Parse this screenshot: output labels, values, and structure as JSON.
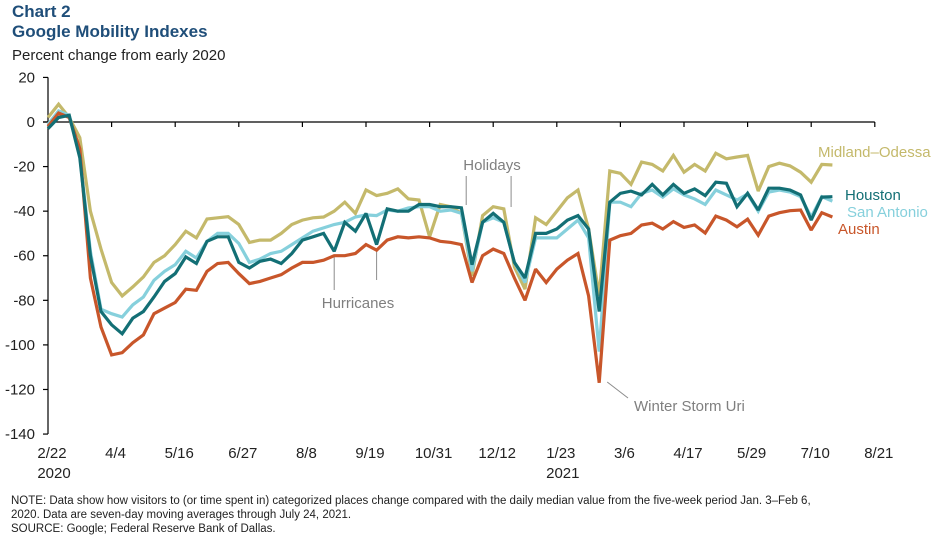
{
  "header": {
    "chart_number": "Chart 2",
    "title": "Google Mobility Indexes",
    "subtitle": "Percent change from early 2020"
  },
  "footnotes": {
    "note_line1": "NOTE: Data show how visitors to (or time spent in) categorized places change compared with the daily median value from the five-week  period Jan. 3–Feb 6,",
    "note_line2": "2020. Data are seven-day moving averages through July 24, 2021.",
    "source": "SOURCE: Google; Federal Reserve Bank of Dallas."
  },
  "chart_data": {
    "type": "line",
    "title": "Google Mobility Indexes",
    "ylabel": "Percent change from early 2020",
    "xlabel": "",
    "ylim": [
      -140,
      20
    ],
    "yticks": [
      20,
      0,
      -20,
      -40,
      -60,
      -80,
      -100,
      -120,
      -140
    ],
    "x_unit": "weeks since 2/22/2020",
    "xlim": [
      0,
      78
    ],
    "xticks": [
      {
        "week": 0,
        "label": "2/22",
        "year": "2020"
      },
      {
        "week": 6,
        "label": "4/4",
        "year": ""
      },
      {
        "week": 12,
        "label": "5/16",
        "year": ""
      },
      {
        "week": 18,
        "label": "6/27",
        "year": ""
      },
      {
        "week": 24,
        "label": "8/8",
        "year": ""
      },
      {
        "week": 30,
        "label": "9/19",
        "year": ""
      },
      {
        "week": 36,
        "label": "10/31",
        "year": ""
      },
      {
        "week": 42,
        "label": "12/12",
        "year": ""
      },
      {
        "week": 48,
        "label": "1/23",
        "year": "2021"
      },
      {
        "week": 54,
        "label": "3/6",
        "year": ""
      },
      {
        "week": 60,
        "label": "4/17",
        "year": ""
      },
      {
        "week": 66,
        "label": "5/29",
        "year": ""
      },
      {
        "week": 72,
        "label": "7/10",
        "year": ""
      },
      {
        "week": 78,
        "label": "8/21",
        "year": ""
      }
    ],
    "grid": false,
    "legend_placement": "right (labels at line ends)",
    "series": [
      {
        "name": "Midland–Odessa",
        "color": "#c4b96b",
        "values": [
          2,
          8,
          2,
          -7,
          -40,
          -57,
          -72,
          -78,
          -74,
          -69.5,
          -63,
          -60,
          -55,
          -49,
          -52,
          -43.5,
          -43,
          -42.5,
          -46,
          -54,
          -53,
          -53,
          -50,
          -46,
          -44,
          -43,
          -42.6,
          -40,
          -36,
          -41,
          -30.5,
          -33,
          -32,
          -30,
          -34.5,
          -35,
          -51.5,
          -37,
          -38,
          -41,
          -69,
          -42,
          -38,
          -39,
          -65,
          -75,
          -43,
          -46,
          -40,
          -34,
          -30.5,
          -48,
          -78,
          -22,
          -23,
          -28,
          -18,
          -19,
          -22,
          -15,
          -22.5,
          -19,
          -22,
          -14,
          -16.5,
          -15.7,
          -15,
          -31,
          -20,
          -18.5,
          -19.7,
          -22.5,
          -27,
          -19,
          -19.3
        ]
      },
      {
        "name": "Houston",
        "color": "#136f75",
        "values": [
          -3,
          2,
          3,
          -16,
          -60,
          -85,
          -91,
          -95,
          -88,
          -85,
          -78.5,
          -71.5,
          -68,
          -60.5,
          -63.5,
          -53.5,
          -51.5,
          -51.5,
          -63,
          -65.5,
          -62.5,
          -61.5,
          -63.5,
          -59,
          -53,
          -51.5,
          -50,
          -58,
          -45,
          -49,
          -41,
          -55,
          -39,
          -40,
          -40,
          -37,
          -37,
          -38,
          -38,
          -38.5,
          -64,
          -45,
          -41,
          -45,
          -63,
          -70,
          -50,
          -50,
          -48,
          -44,
          -42,
          -48,
          -85,
          -36,
          -32,
          -31,
          -32.7,
          -28,
          -32.7,
          -28,
          -32,
          -30,
          -33,
          -27,
          -27.5,
          -38,
          -32,
          -39.5,
          -29.7,
          -29.7,
          -30.5,
          -32.7,
          -44,
          -33.7,
          -33.5
        ]
      },
      {
        "name": "San Antonio",
        "color": "#86d0dc",
        "values": [
          -1,
          5,
          3,
          -15,
          -58,
          -84,
          -86,
          -87.5,
          -82,
          -78.5,
          -71,
          -67,
          -64,
          -58,
          -61,
          -53.5,
          -50,
          -50,
          -54.5,
          -63,
          -61.5,
          -59,
          -58,
          -55,
          -52,
          -49,
          -47.5,
          -46,
          -45,
          -42.6,
          -41.7,
          -42,
          -39.5,
          -40,
          -38.6,
          -38,
          -38,
          -40,
          -39.5,
          -41,
          -67,
          -45,
          -43,
          -45,
          -63,
          -72,
          -52,
          -52,
          -52,
          -48,
          -44,
          -52,
          -103,
          -36,
          -36,
          -38,
          -32,
          -30.5,
          -33.7,
          -30,
          -32.7,
          -34.5,
          -37,
          -30.5,
          -32.7,
          -35,
          -32.3,
          -40,
          -31.4,
          -30.5,
          -31.4,
          -33.5,
          -42.6,
          -33.5,
          -35.5
        ]
      },
      {
        "name": "Austin",
        "color": "#c8562a",
        "values": [
          -2,
          4,
          2,
          -12,
          -70,
          -92,
          -104.5,
          -103.5,
          -99,
          -95.5,
          -86,
          -83.5,
          -81,
          -75,
          -75.5,
          -67,
          -63.5,
          -63,
          -68,
          -72.5,
          -71.5,
          -70,
          -68.5,
          -65.5,
          -63,
          -63,
          -62,
          -60,
          -60,
          -59,
          -55,
          -57.5,
          -53,
          -51.5,
          -52,
          -51.5,
          -52,
          -53.5,
          -54,
          -55,
          -72,
          -60,
          -57,
          -59,
          -70,
          -80,
          -66,
          -72,
          -66,
          -62,
          -59,
          -78,
          -117,
          -53,
          -51,
          -50,
          -46.2,
          -45.4,
          -48,
          -44.7,
          -47.3,
          -46.2,
          -49.8,
          -42.2,
          -44,
          -47,
          -43.6,
          -50.8,
          -42.2,
          -40.7,
          -39.8,
          -39.5,
          -48.5,
          -40.7,
          -42.6
        ]
      }
    ],
    "annotations": [
      {
        "text": "Hurricanes",
        "weeks": [
          27,
          31
        ]
      },
      {
        "text": "Holidays",
        "weeks": [
          39.5,
          43.5
        ]
      },
      {
        "text": "Winter Storm Uri",
        "weeks": [
          52
        ]
      }
    ]
  }
}
